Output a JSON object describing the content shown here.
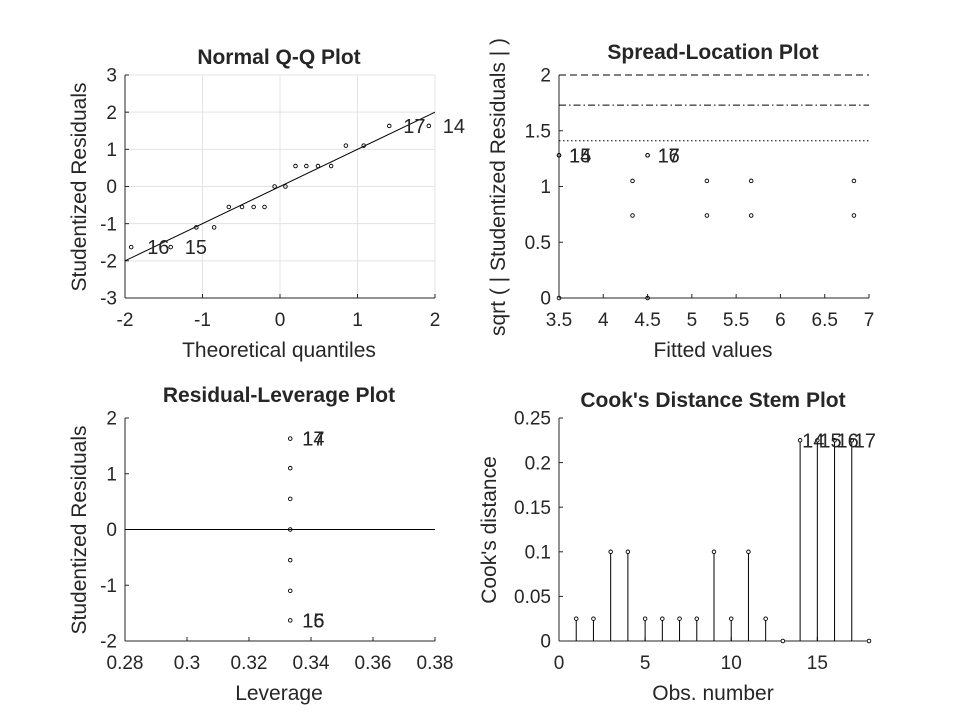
{
  "chart_data": [
    {
      "type": "scatter",
      "title": "Normal Q-Q Plot",
      "xlabel": "Theoretical quantiles",
      "ylabel": "Studentized Residuals",
      "xlim": [
        -2,
        2
      ],
      "ylim": [
        -3,
        3
      ],
      "xticks": [
        "-2",
        "-1",
        "0",
        "1",
        "2"
      ],
      "yticks": [
        "-3",
        "-2",
        "-1",
        "0",
        "1",
        "2",
        "3"
      ],
      "grid": true,
      "reference_line": {
        "x": [
          -2,
          2
        ],
        "y": [
          -2,
          2
        ]
      },
      "points": {
        "x": [
          -1.92,
          -1.41,
          -1.08,
          -0.85,
          -0.66,
          -0.49,
          -0.34,
          -0.2,
          -0.07,
          0.07,
          0.2,
          0.34,
          0.49,
          0.66,
          0.85,
          1.08,
          1.41,
          1.92
        ],
        "y": [
          -1.63,
          -1.63,
          -1.1,
          -1.1,
          -0.55,
          -0.55,
          -0.55,
          -0.55,
          0,
          0,
          0.55,
          0.55,
          0.55,
          0.55,
          1.1,
          1.1,
          1.63,
          1.63
        ]
      },
      "labels": [
        {
          "text": "16",
          "x": -1.92,
          "y": -1.63
        },
        {
          "text": "15",
          "x": -1.41,
          "y": -1.63
        },
        {
          "text": "17",
          "x": 1.41,
          "y": 1.63
        },
        {
          "text": "14",
          "x": 1.92,
          "y": 1.63
        }
      ]
    },
    {
      "type": "scatter",
      "title": "Spread-Location Plot",
      "xlabel": "Fitted values",
      "ylabel": "sqrt ( | Studentized Residuals | )",
      "xlim": [
        3.5,
        7
      ],
      "ylim": [
        0,
        2
      ],
      "xticks": [
        "3.5",
        "4",
        "4.5",
        "5",
        "5.5",
        "6",
        "6.5",
        "7"
      ],
      "yticks": [
        "0",
        "0.5",
        "1",
        "1.5",
        "2"
      ],
      "grid": false,
      "hlines": [
        {
          "y": 2.0,
          "style": "dashed"
        },
        {
          "y": 1.73,
          "style": "dashdot"
        },
        {
          "y": 1.41,
          "style": "dotted"
        }
      ],
      "points": {
        "x": [
          3.5,
          3.5,
          3.5,
          4.33,
          4.33,
          4.5,
          4.5,
          4.5,
          5.17,
          5.17,
          5.67,
          5.67,
          6.83,
          6.83
        ],
        "y": [
          1.28,
          1.28,
          0,
          1.05,
          0.74,
          1.28,
          1.28,
          0,
          1.05,
          0.74,
          1.05,
          0.74,
          1.05,
          0.74
        ]
      },
      "labels": [
        {
          "text": "14",
          "x": 3.5,
          "y": 1.28
        },
        {
          "text": "15",
          "x": 3.5,
          "y": 1.28
        },
        {
          "text": "16",
          "x": 4.5,
          "y": 1.28
        },
        {
          "text": "17",
          "x": 4.5,
          "y": 1.28
        }
      ]
    },
    {
      "type": "scatter",
      "title": "Residual-Leverage Plot",
      "xlabel": "Leverage",
      "ylabel": "Studentized Residuals",
      "xlim": [
        0.28,
        0.38
      ],
      "ylim": [
        -2,
        2
      ],
      "xticks": [
        "0.28",
        "0.3",
        "0.32",
        "0.34",
        "0.36",
        "0.38"
      ],
      "yticks": [
        "-2",
        "-1",
        "0",
        "1",
        "2"
      ],
      "grid": false,
      "hline": 0,
      "points": {
        "x": [
          0.3333,
          0.3333,
          0.3333,
          0.3333,
          0.3333,
          0.3333,
          0.3333
        ],
        "y": [
          1.63,
          1.1,
          0.55,
          0,
          -0.55,
          -1.1,
          -1.63
        ]
      },
      "labels": [
        {
          "text": "14",
          "x": 0.3333,
          "y": 1.63
        },
        {
          "text": "17",
          "x": 0.3333,
          "y": 1.63
        },
        {
          "text": "15",
          "x": 0.3333,
          "y": -1.63
        },
        {
          "text": "16",
          "x": 0.3333,
          "y": -1.63
        }
      ]
    },
    {
      "type": "stem",
      "title": "Cook's Distance Stem Plot",
      "xlabel": "Obs. number",
      "ylabel": "Cook's distance",
      "xlim": [
        0,
        18
      ],
      "ylim": [
        0,
        0.25
      ],
      "xticks": [
        "0",
        "5",
        "10",
        "15"
      ],
      "yticks": [
        "0",
        "0.05",
        "0.1",
        "0.15",
        "0.2",
        "0.25"
      ],
      "grid": false,
      "x": [
        1,
        2,
        3,
        4,
        5,
        6,
        7,
        8,
        9,
        10,
        11,
        12,
        13,
        14,
        15,
        16,
        17,
        18
      ],
      "values": [
        0.025,
        0.025,
        0.1,
        0.1,
        0.025,
        0.025,
        0.025,
        0.025,
        0.1,
        0.025,
        0.1,
        0.025,
        0,
        0.225,
        0.225,
        0.225,
        0.225,
        0
      ],
      "labels": [
        {
          "text": "14",
          "x": 14,
          "y": 0.225
        },
        {
          "text": "15",
          "x": 15,
          "y": 0.225
        },
        {
          "text": "16",
          "x": 16,
          "y": 0.225
        },
        {
          "text": "17",
          "x": 17,
          "y": 0.225
        }
      ]
    }
  ]
}
